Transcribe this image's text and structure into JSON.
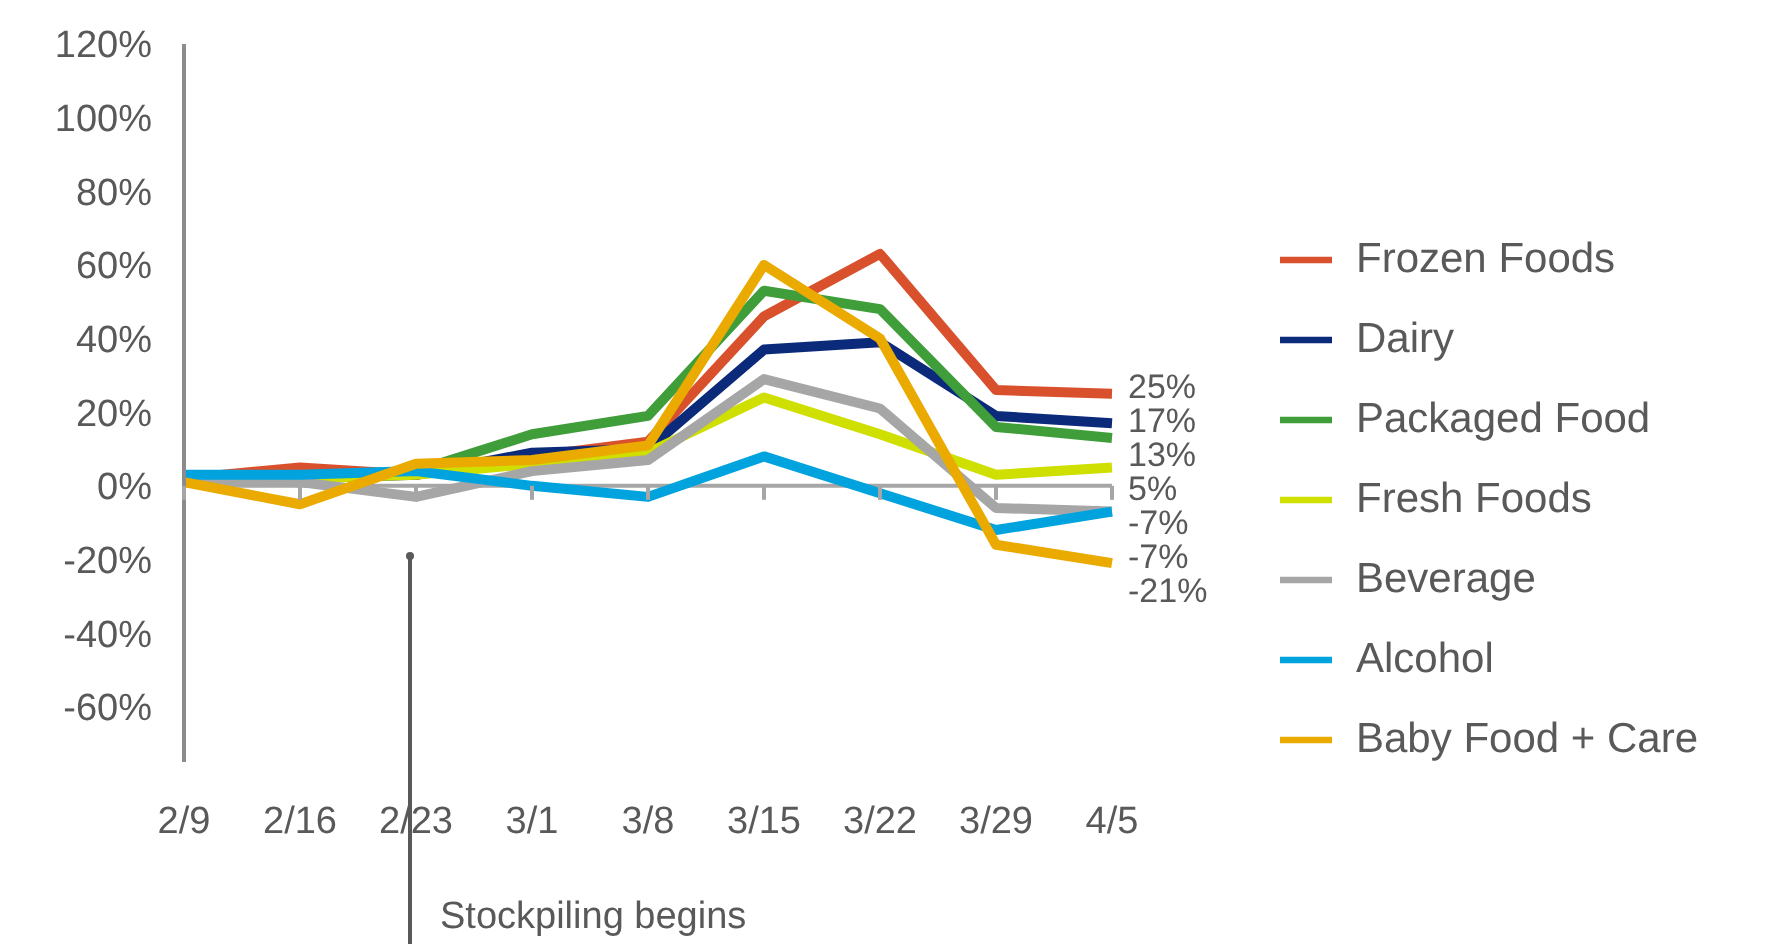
{
  "chart_data": {
    "type": "line",
    "categories": [
      "2/9",
      "2/16",
      "2/23",
      "3/1",
      "3/8",
      "3/15",
      "3/22",
      "3/29",
      "4/5"
    ],
    "ylim": [
      -75,
      120
    ],
    "yticks": [
      {
        "value": -60,
        "label": "-60%"
      },
      {
        "value": -40,
        "label": "-40%"
      },
      {
        "value": -20,
        "label": "-20%"
      },
      {
        "value": 0,
        "label": "0%"
      },
      {
        "value": 20,
        "label": "20%"
      },
      {
        "value": 40,
        "label": "40%"
      },
      {
        "value": 60,
        "label": "60%"
      },
      {
        "value": 80,
        "label": "80%"
      },
      {
        "value": 100,
        "label": "100%"
      },
      {
        "value": 120,
        "label": "120%"
      }
    ],
    "grid": false,
    "ref_lines": [
      {
        "axis": "y",
        "value": 0,
        "color": "#a6a6a6"
      }
    ],
    "legend": "right",
    "marker": "none",
    "line_style": "solid",
    "series": [
      {
        "name": "Frozen Foods",
        "color": "#d9512c",
        "values": [
          2,
          5,
          3,
          8,
          12,
          46,
          63,
          26,
          25
        ],
        "value_labels": [
          null,
          null,
          null,
          null,
          null,
          null,
          null,
          null,
          "25%"
        ]
      },
      {
        "name": "Dairy",
        "color": "#0c2a7a",
        "values": [
          2,
          2,
          3,
          9,
          10,
          37,
          39,
          19,
          17
        ],
        "value_labels": [
          null,
          null,
          null,
          null,
          null,
          null,
          null,
          null,
          "17%"
        ]
      },
      {
        "name": "Packaged Food",
        "color": "#3f9e3a",
        "values": [
          2,
          2,
          4,
          14,
          19,
          53,
          48,
          16,
          13
        ],
        "value_labels": [
          null,
          null,
          null,
          null,
          null,
          null,
          null,
          null,
          "13%"
        ]
      },
      {
        "name": "Fresh Foods",
        "color": "#cfdf00",
        "values": [
          2,
          2,
          3,
          6,
          9,
          24,
          14,
          3,
          5
        ],
        "value_labels": [
          null,
          null,
          null,
          null,
          null,
          null,
          null,
          null,
          "5%"
        ]
      },
      {
        "name": "Beverage",
        "color": "#a6a6a6",
        "values": [
          2,
          1,
          -3,
          4,
          7,
          29,
          21,
          -6,
          -7
        ],
        "value_labels": [
          null,
          null,
          null,
          null,
          null,
          null,
          null,
          null,
          "-7%"
        ]
      },
      {
        "name": "Alcohol",
        "color": "#00a3de",
        "values": [
          3,
          3,
          4,
          0,
          -3,
          8,
          -2,
          -12,
          -7
        ],
        "value_labels": [
          null,
          null,
          null,
          null,
          null,
          null,
          null,
          null,
          "-7%"
        ]
      },
      {
        "name": "Baby Food + Care",
        "color": "#eaaa00",
        "values": [
          1,
          -5,
          6,
          7,
          11,
          60,
          40,
          -16,
          -21
        ],
        "value_labels": [
          null,
          null,
          null,
          null,
          null,
          null,
          null,
          null,
          "-21%"
        ]
      }
    ],
    "annotations": [
      "Stockpiling begins"
    ]
  }
}
